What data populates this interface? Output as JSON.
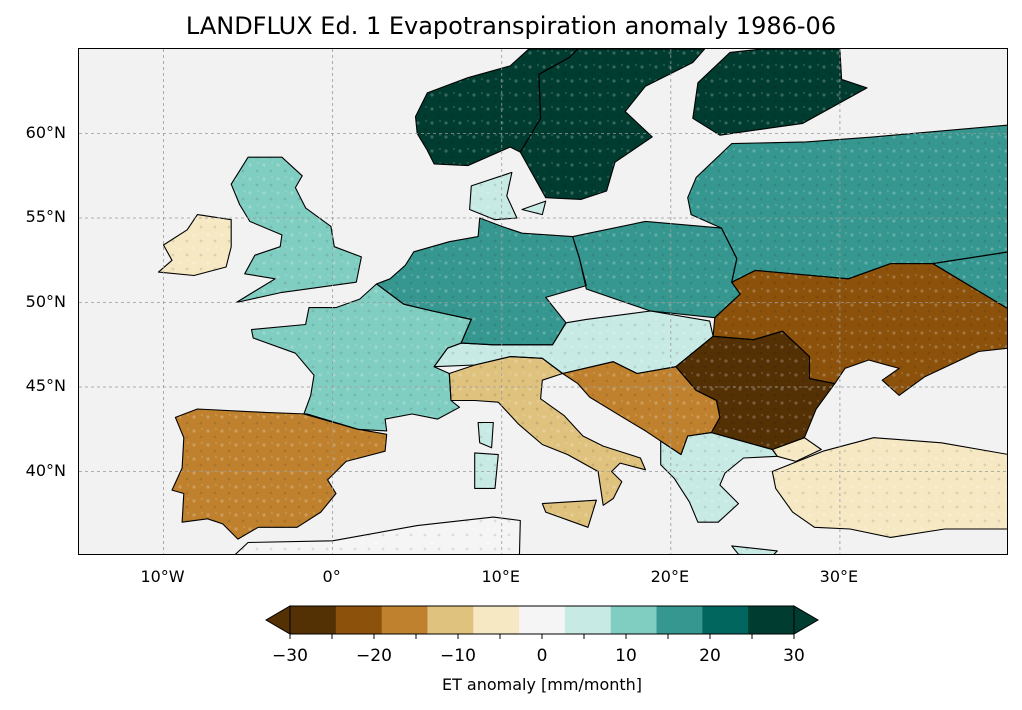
{
  "title": "LANDFLUX Ed. 1 Evapotranspiration anomaly 1986-06",
  "map": {
    "projection": "plate-carree",
    "lon_range": [
      -15,
      40
    ],
    "lat_range": [
      35,
      65
    ],
    "lat_ticks": [
      {
        "value": 60,
        "label": "60°N"
      },
      {
        "value": 55,
        "label": "55°N"
      },
      {
        "value": 50,
        "label": "50°N"
      },
      {
        "value": 45,
        "label": "45°N"
      },
      {
        "value": 40,
        "label": "40°N"
      }
    ],
    "lon_ticks": [
      {
        "value": -10,
        "label": "10°W"
      },
      {
        "value": 0,
        "label": "0°"
      },
      {
        "value": 10,
        "label": "10°E"
      },
      {
        "value": 20,
        "label": "20°E"
      },
      {
        "value": 30,
        "label": "30°E"
      }
    ],
    "gridlines": true,
    "ocean_color": "#f2f2f2",
    "coastline_color": "#000000"
  },
  "colorbar": {
    "label": "ET anomaly [mm/month]",
    "min": -30,
    "max": 30,
    "step": 5,
    "extend": "both",
    "ticks": [
      {
        "value": -30,
        "label": "−30"
      },
      {
        "value": -20,
        "label": "−20"
      },
      {
        "value": -10,
        "label": "−10"
      },
      {
        "value": 0,
        "label": "0"
      },
      {
        "value": 10,
        "label": "10"
      },
      {
        "value": 20,
        "label": "20"
      },
      {
        "value": 30,
        "label": "30"
      }
    ],
    "colors": [
      "#543005",
      "#8c510a",
      "#bf812d",
      "#dfc27d",
      "#f6e8c3",
      "#f5f5f5",
      "#c7eae5",
      "#80cdc1",
      "#35978f",
      "#01665e",
      "#003c30"
    ],
    "extend_low_color": "#543005",
    "extend_high_color": "#003c30"
  },
  "regions": [
    {
      "name": "Norway",
      "anomaly": 28
    },
    {
      "name": "Sweden",
      "anomaly": 26
    },
    {
      "name": "Finland",
      "anomaly": 30
    },
    {
      "name": "Baltics-Belarus",
      "anomaly": 18
    },
    {
      "name": "Great Britain",
      "anomaly": 12
    },
    {
      "name": "Ireland",
      "anomaly": -8
    },
    {
      "name": "France",
      "anomaly": 10
    },
    {
      "name": "Germany-Benelux",
      "anomaly": 16
    },
    {
      "name": "Poland",
      "anomaly": 18
    },
    {
      "name": "Iberia",
      "anomaly": -18
    },
    {
      "name": "Italy",
      "anomaly": -12
    },
    {
      "name": "Balkans",
      "anomaly": -18
    },
    {
      "name": "Ukraine",
      "anomaly": -22
    },
    {
      "name": "Romania",
      "anomaly": -25
    },
    {
      "name": "Turkey",
      "anomaly": -6
    },
    {
      "name": "North Africa",
      "anomaly": 2
    },
    {
      "name": "Greece",
      "anomaly": 5
    }
  ]
}
